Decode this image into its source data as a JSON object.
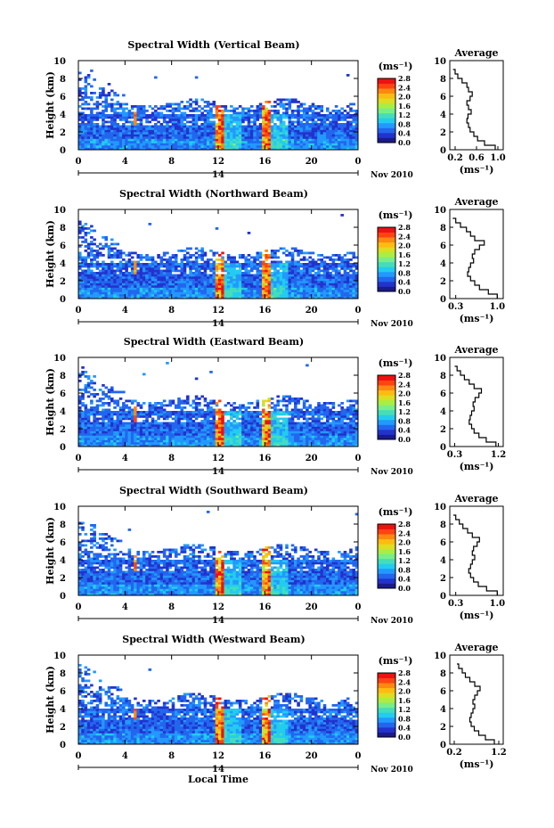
{
  "figure": {
    "x_title": "Local Time",
    "date_label": "Nov 2010",
    "day_label": "14",
    "ylabel": "Height (km)",
    "unit_label": "(ms⁻¹)",
    "avg_title": "Average",
    "avg_xlabel": "(ms⁻¹)"
  },
  "colorbar": {
    "ticks": [
      "0.0",
      "0.4",
      "0.8",
      "1.2",
      "1.6",
      "2.0",
      "2.4",
      "2.8"
    ],
    "colors": [
      "#1a1a8c",
      "#2233cc",
      "#2266ee",
      "#2299ff",
      "#22ccee",
      "#44ddbb",
      "#77ee88",
      "#aaee44",
      "#dddd22",
      "#ffbb11",
      "#ff8811",
      "#ff4411",
      "#ee1111"
    ]
  },
  "chart_data": [
    {
      "type": "heatmap",
      "title": "Spectral Width (Vertical Beam)",
      "x_ticks": [
        "0",
        "4",
        "8",
        "12",
        "16",
        "20",
        "0"
      ],
      "y_ticks": [
        "0",
        "2",
        "4",
        "6",
        "8",
        "10"
      ],
      "xlim": [
        0,
        24
      ],
      "ylim": [
        0,
        10
      ],
      "colorbar_range": [
        0,
        2.8
      ],
      "average_profile": {
        "x_ticks": [
          "0.2",
          "0.6",
          "1.0"
        ],
        "xlim": [
          0.1,
          1.1
        ],
        "height_km": [
          0,
          0.5,
          1,
          1.5,
          2,
          2.5,
          3,
          3.5,
          4,
          4.5,
          5,
          5.5,
          6,
          6.5,
          7,
          7.5,
          8,
          8.5,
          9,
          9.5,
          10
        ],
        "values": [
          0.95,
          0.75,
          0.62,
          0.55,
          0.48,
          0.45,
          0.42,
          0.44,
          0.5,
          0.45,
          0.42,
          0.48,
          0.52,
          0.45,
          0.42,
          0.33,
          0.25,
          0.2,
          0.16,
          null,
          null
        ]
      }
    },
    {
      "type": "heatmap",
      "title": "Spectral Width (Northward Beam)",
      "x_ticks": [
        "0",
        "4",
        "8",
        "12",
        "16",
        "20",
        "0"
      ],
      "y_ticks": [
        "0",
        "2",
        "4",
        "6",
        "8",
        "10"
      ],
      "xlim": [
        0,
        24
      ],
      "ylim": [
        0,
        10
      ],
      "colorbar_range": [
        0,
        2.8
      ],
      "average_profile": {
        "x_ticks": [
          "0.3",
          "1.0"
        ],
        "xlim": [
          0.2,
          1.1
        ],
        "height_km": [
          0,
          0.5,
          1,
          1.5,
          2,
          2.5,
          3,
          3.5,
          4,
          4.5,
          5,
          5.5,
          6,
          6.5,
          7,
          7.5,
          8,
          8.5,
          9,
          9.5,
          10
        ],
        "values": [
          1.0,
          0.85,
          0.7,
          0.62,
          0.55,
          0.5,
          0.52,
          0.55,
          0.6,
          0.58,
          0.62,
          0.7,
          0.78,
          0.62,
          0.55,
          0.48,
          0.38,
          0.3,
          0.25,
          null,
          null
        ]
      }
    },
    {
      "type": "heatmap",
      "title": "Spectral Width (Eastward Beam)",
      "x_ticks": [
        "0",
        "4",
        "8",
        "12",
        "16",
        "20",
        "0"
      ],
      "y_ticks": [
        "0",
        "2",
        "4",
        "6",
        "8",
        "10"
      ],
      "xlim": [
        0,
        24
      ],
      "ylim": [
        0,
        10
      ],
      "colorbar_range": [
        0,
        2.8
      ],
      "average_profile": {
        "x_ticks": [
          "0.3",
          "1.2"
        ],
        "xlim": [
          0.2,
          1.3
        ],
        "height_km": [
          0,
          0.5,
          1,
          1.5,
          2,
          2.5,
          3,
          3.5,
          4,
          4.5,
          5,
          5.5,
          6,
          6.5,
          7,
          7.5,
          8,
          8.5,
          9,
          9.5,
          10
        ],
        "values": [
          1.15,
          0.95,
          0.8,
          0.7,
          0.65,
          0.6,
          0.62,
          0.65,
          0.7,
          0.68,
          0.72,
          0.8,
          0.85,
          0.7,
          0.6,
          0.5,
          0.42,
          0.35,
          0.3,
          null,
          null
        ]
      }
    },
    {
      "type": "heatmap",
      "title": "Spectral Width (Southward Beam)",
      "x_ticks": [
        "0",
        "4",
        "8",
        "12",
        "16",
        "20",
        "0"
      ],
      "y_ticks": [
        "0",
        "2",
        "4",
        "6",
        "8",
        "10"
      ],
      "xlim": [
        0,
        24
      ],
      "ylim": [
        0,
        10
      ],
      "colorbar_range": [
        0,
        2.8
      ],
      "average_profile": {
        "x_ticks": [
          "0.3",
          "1.0"
        ],
        "xlim": [
          0.2,
          1.1
        ],
        "height_km": [
          0,
          0.5,
          1,
          1.5,
          2,
          2.5,
          3,
          3.5,
          4,
          4.5,
          5,
          5.5,
          6,
          6.5,
          7,
          7.5,
          8,
          8.5,
          9,
          9.5,
          10
        ],
        "values": [
          1.0,
          0.82,
          0.68,
          0.6,
          0.55,
          0.52,
          0.55,
          0.58,
          0.62,
          0.58,
          0.6,
          0.66,
          0.7,
          0.58,
          0.5,
          0.42,
          0.36,
          0.3,
          0.26,
          null,
          null
        ]
      }
    },
    {
      "type": "heatmap",
      "title": "Spectral Width (Westward Beam)",
      "x_ticks": [
        "0",
        "4",
        "8",
        "12",
        "16",
        "20",
        "0"
      ],
      "y_ticks": [
        "0",
        "2",
        "4",
        "6",
        "8",
        "10"
      ],
      "xlim": [
        0,
        24
      ],
      "ylim": [
        0,
        10
      ],
      "colorbar_range": [
        0,
        2.8
      ],
      "average_profile": {
        "x_ticks": [
          "0.2",
          "1.2"
        ],
        "xlim": [
          0.1,
          1.3
        ],
        "height_km": [
          0,
          0.5,
          1,
          1.5,
          2,
          2.5,
          3,
          3.5,
          4,
          4.5,
          5,
          5.5,
          6,
          6.5,
          7,
          7.5,
          8,
          8.5,
          9,
          9.5,
          10
        ],
        "values": [
          1.1,
          0.9,
          0.75,
          0.65,
          0.58,
          0.55,
          0.58,
          0.62,
          0.66,
          0.62,
          0.66,
          0.72,
          0.78,
          0.66,
          0.55,
          0.45,
          0.38,
          0.3,
          0.26,
          null,
          null
        ]
      }
    }
  ]
}
